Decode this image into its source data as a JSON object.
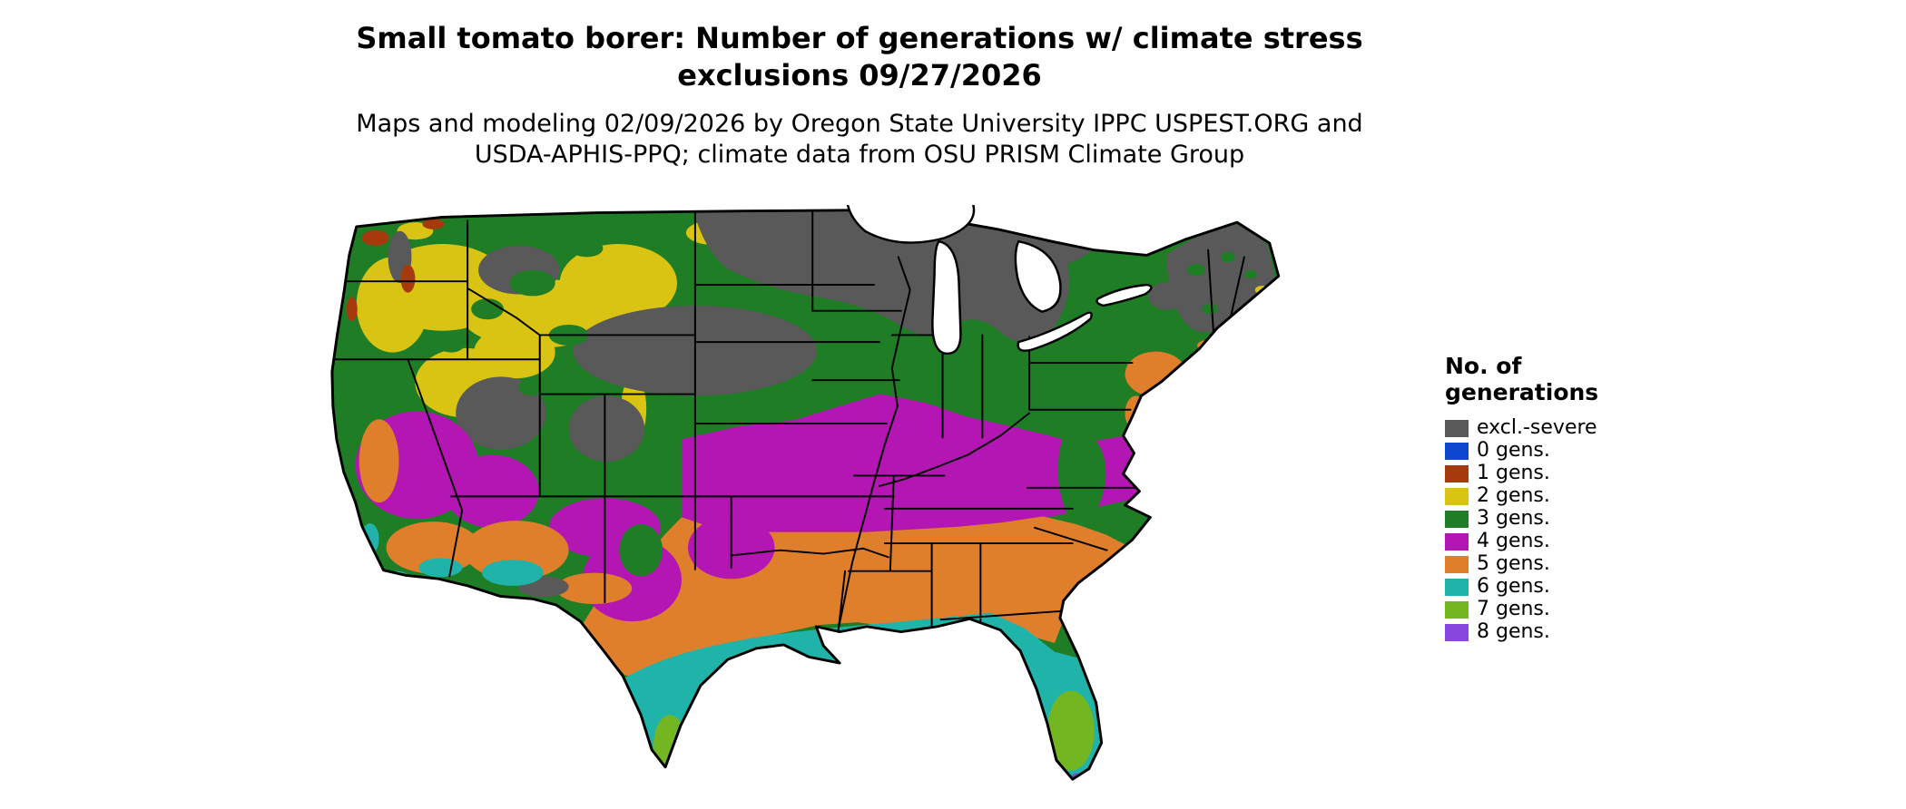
{
  "title": {
    "line1": "Small tomato borer: Number of generations w/ climate stress",
    "line2": "exclusions 09/27/2026"
  },
  "subtitle": {
    "line1": "Maps and modeling 02/09/2026 by Oregon State University IPPC USPEST.ORG and",
    "line2": "USDA-APHIS-PPQ; climate data from OSU PRISM Climate Group"
  },
  "legend": {
    "title_line1": "No. of",
    "title_line2": "generations",
    "items": [
      {
        "key": "excl",
        "label": "excl.-severe",
        "color": "#595959"
      },
      {
        "key": "g0",
        "label": "0 gens.",
        "color": "#0d47cf"
      },
      {
        "key": "g1",
        "label": "1 gens.",
        "color": "#a63a0c"
      },
      {
        "key": "g2",
        "label": "2 gens.",
        "color": "#d9c414"
      },
      {
        "key": "g3",
        "label": "3 gens.",
        "color": "#1f7d26"
      },
      {
        "key": "g4",
        "label": "4 gens.",
        "color": "#b316b3"
      },
      {
        "key": "g5",
        "label": "5 gens.",
        "color": "#e07f2b"
      },
      {
        "key": "g6",
        "label": "6 gens.",
        "color": "#1fb3a9"
      },
      {
        "key": "g7",
        "label": "7 gens.",
        "color": "#74b622"
      },
      {
        "key": "g8",
        "label": "8 gens.",
        "color": "#8746dd"
      }
    ]
  },
  "map": {
    "region_name": "Continental United States",
    "water_color": "#ffffff",
    "border_color": "#000000"
  }
}
